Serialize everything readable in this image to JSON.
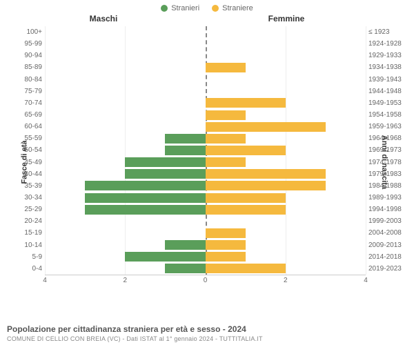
{
  "legend": {
    "male": {
      "label": "Stranieri",
      "color": "#5a9e5a"
    },
    "female": {
      "label": "Straniere",
      "color": "#f5b93e"
    }
  },
  "column_titles": {
    "left": "Maschi",
    "right": "Femmine"
  },
  "axis_labels": {
    "left": "Fasce di età",
    "right": "Anni di nascita"
  },
  "chart": {
    "type": "population-pyramid",
    "x_max": 4,
    "x_ticks": [
      4,
      2,
      0,
      2,
      4
    ],
    "background_color": "#ffffff",
    "grid_color": "#eeeeee",
    "center_line_color": "#888888",
    "bar_height_ratio": 0.82,
    "rows": [
      {
        "age": "100+",
        "years": "≤ 1923",
        "m": 0,
        "f": 0
      },
      {
        "age": "95-99",
        "years": "1924-1928",
        "m": 0,
        "f": 0
      },
      {
        "age": "90-94",
        "years": "1929-1933",
        "m": 0,
        "f": 0
      },
      {
        "age": "85-89",
        "years": "1934-1938",
        "m": 0,
        "f": 1
      },
      {
        "age": "80-84",
        "years": "1939-1943",
        "m": 0,
        "f": 0
      },
      {
        "age": "75-79",
        "years": "1944-1948",
        "m": 0,
        "f": 0
      },
      {
        "age": "70-74",
        "years": "1949-1953",
        "m": 0,
        "f": 2
      },
      {
        "age": "65-69",
        "years": "1954-1958",
        "m": 0,
        "f": 1
      },
      {
        "age": "60-64",
        "years": "1959-1963",
        "m": 0,
        "f": 3
      },
      {
        "age": "55-59",
        "years": "1964-1968",
        "m": 1,
        "f": 1
      },
      {
        "age": "50-54",
        "years": "1969-1973",
        "m": 1,
        "f": 2
      },
      {
        "age": "45-49",
        "years": "1974-1978",
        "m": 2,
        "f": 1
      },
      {
        "age": "40-44",
        "years": "1979-1983",
        "m": 2,
        "f": 3
      },
      {
        "age": "35-39",
        "years": "1984-1988",
        "m": 3,
        "f": 3
      },
      {
        "age": "30-34",
        "years": "1989-1993",
        "m": 3,
        "f": 2
      },
      {
        "age": "25-29",
        "years": "1994-1998",
        "m": 3,
        "f": 2
      },
      {
        "age": "20-24",
        "years": "1999-2003",
        "m": 0,
        "f": 0
      },
      {
        "age": "15-19",
        "years": "2004-2008",
        "m": 0,
        "f": 1
      },
      {
        "age": "10-14",
        "years": "2009-2013",
        "m": 1,
        "f": 1
      },
      {
        "age": "5-9",
        "years": "2014-2018",
        "m": 2,
        "f": 1
      },
      {
        "age": "0-4",
        "years": "2019-2023",
        "m": 1,
        "f": 2
      }
    ]
  },
  "footer": {
    "title": "Popolazione per cittadinanza straniera per età e sesso - 2024",
    "subtitle": "COMUNE DI CELLIO CON BREIA (VC) - Dati ISTAT al 1° gennaio 2024 - TUTTITALIA.IT"
  }
}
